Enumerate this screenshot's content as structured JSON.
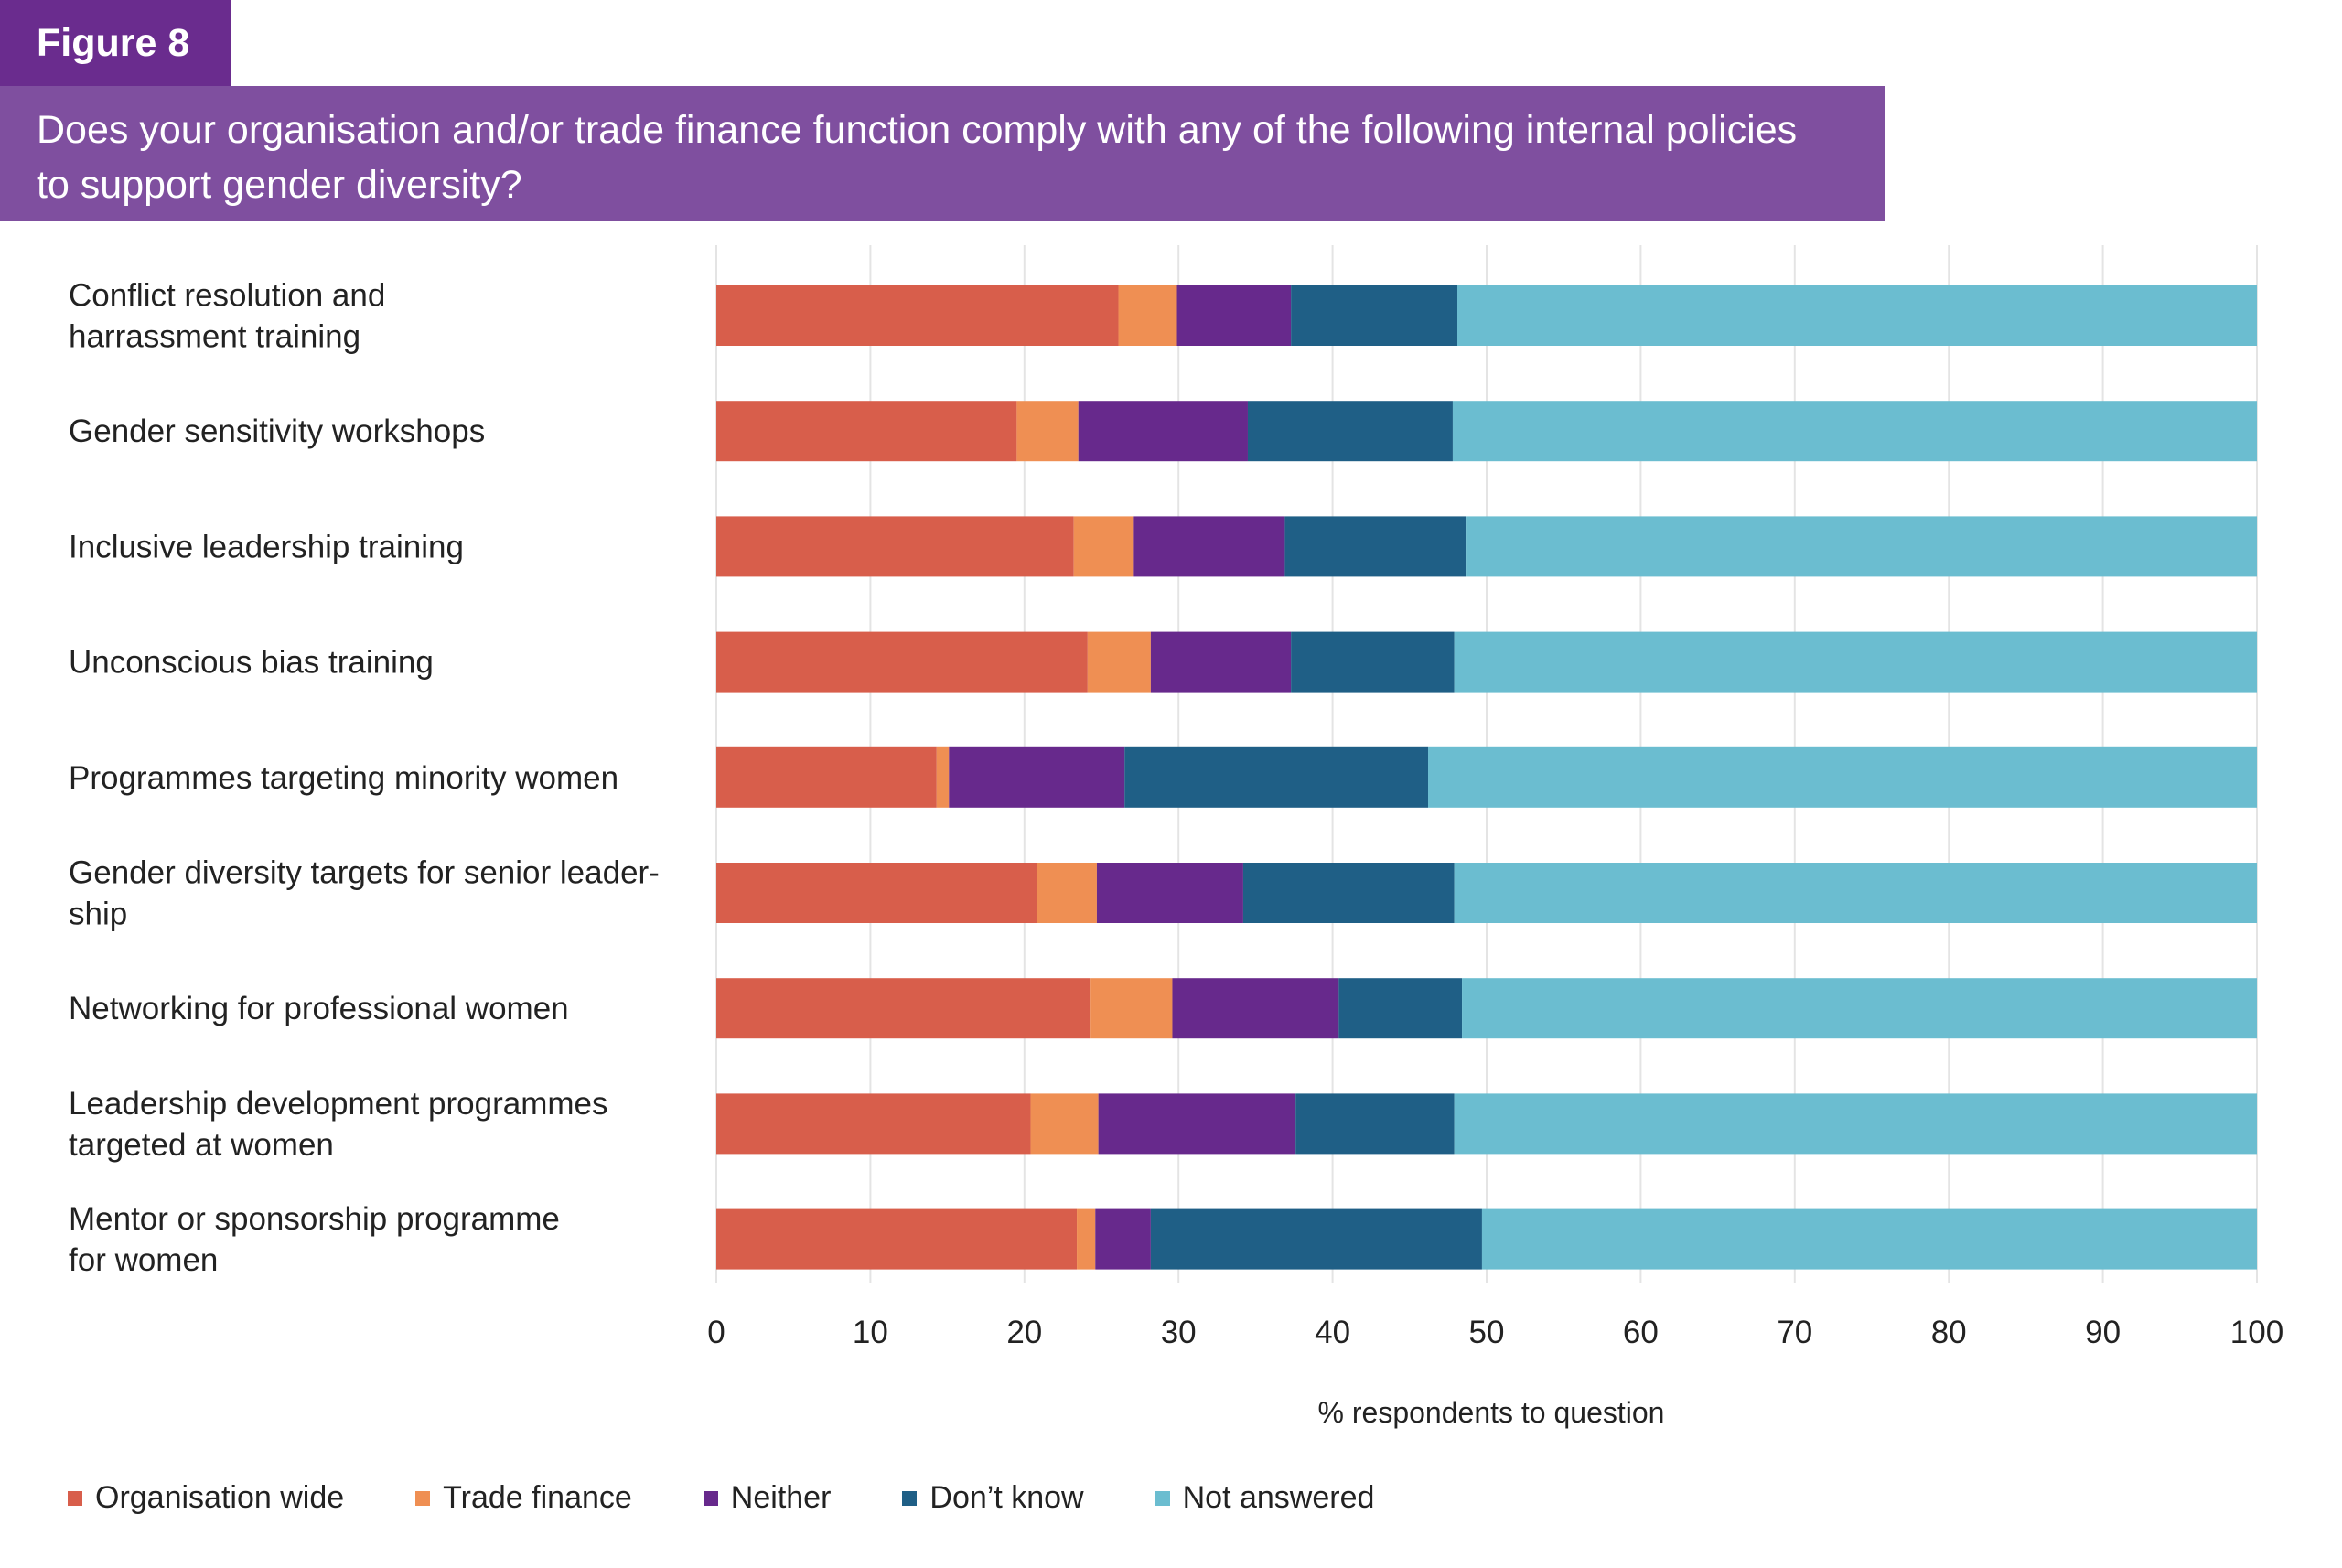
{
  "figure_label": "Figure 8",
  "title_lines": [
    "Does your organisation and/or trade finance function comply with any of the following internal policies",
    "to support gender diversity?"
  ],
  "colors": {
    "figure_label_bg": "#6a2c8e",
    "title_bg": "#7f4f9f",
    "organisation_wide": "#d85e4b",
    "trade_finance": "#ef8f53",
    "neither": "#67298c",
    "dont_know": "#1f5f86",
    "not_answered": "#6bbdd0",
    "grid": "#e4e4e4"
  },
  "legend": [
    {
      "label": "Organisation wide",
      "color": "#d85e4b"
    },
    {
      "label": "Trade finance",
      "color": "#ef8f53"
    },
    {
      "label": "Neither",
      "color": "#67298c"
    },
    {
      "label": "Don’t know",
      "color": "#1f5f86"
    },
    {
      "label": "Not answered",
      "color": "#6bbdd0"
    }
  ],
  "chart_data": {
    "type": "bar",
    "orientation": "horizontal",
    "stacked": true,
    "xlabel": "% respondents to question",
    "xlim": [
      0,
      100
    ],
    "xticks": [
      0,
      10,
      20,
      30,
      40,
      50,
      60,
      70,
      80,
      90,
      100
    ],
    "grid": true,
    "legend_position": "bottom-left",
    "categories": [
      [
        "Conflict resolution and",
        "harrassment training"
      ],
      [
        "Gender sensitivity workshops"
      ],
      [
        "Inclusive leadership training"
      ],
      [
        "Unconscious bias training"
      ],
      [
        "Programmes targeting minority women"
      ],
      [
        "Gender diversity targets for senior leader-",
        "ship"
      ],
      [
        "Networking for professional women"
      ],
      [
        "Leadership development programmes",
        "targeted at women"
      ],
      [
        "Mentor or sponsorship programme",
        "for women"
      ]
    ],
    "series": [
      {
        "name": "Organisation wide",
        "values": [
          26.1,
          19.5,
          23.2,
          24.1,
          14.3,
          20.8,
          24.3,
          20.4,
          23.4
        ]
      },
      {
        "name": "Trade finance",
        "values": [
          3.8,
          4.0,
          3.9,
          4.1,
          0.8,
          3.9,
          5.3,
          4.4,
          1.2
        ]
      },
      {
        "name": "Neither",
        "values": [
          7.4,
          11.0,
          9.8,
          9.1,
          11.4,
          9.5,
          10.8,
          12.8,
          3.6
        ]
      },
      {
        "name": "Don’t know",
        "values": [
          10.8,
          13.3,
          11.8,
          10.6,
          19.7,
          13.7,
          8.0,
          10.3,
          21.5
        ]
      },
      {
        "name": "Not answered",
        "values": [
          51.9,
          52.2,
          51.3,
          52.1,
          53.8,
          52.1,
          51.6,
          52.1,
          50.3
        ]
      }
    ]
  }
}
